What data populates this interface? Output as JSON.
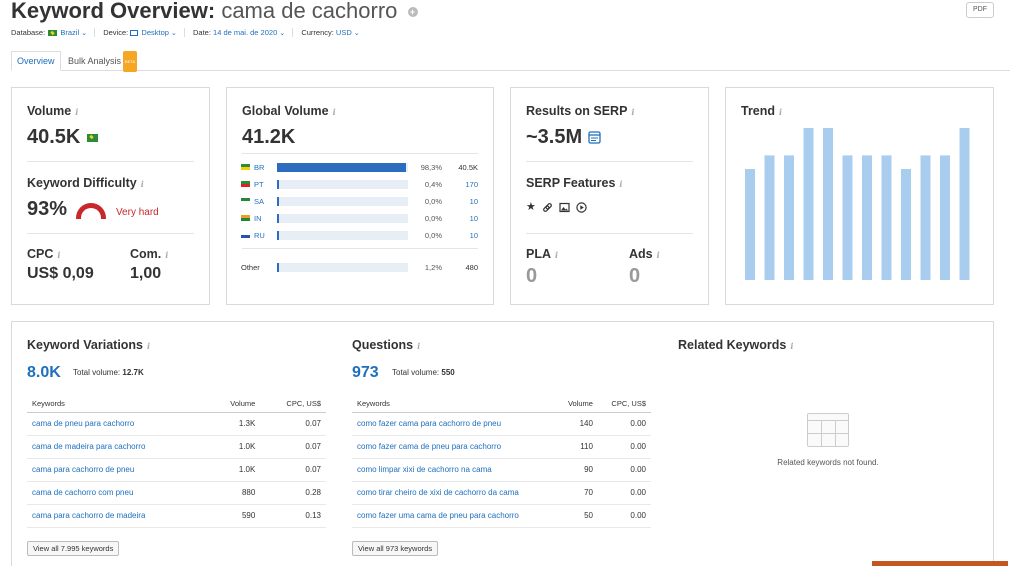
{
  "header": {
    "title_prefix": "Keyword Overview:",
    "keyword": "cama de cachorro",
    "pdf_label": "PDF"
  },
  "filters": {
    "database_label": "Database:",
    "database_value": "Brazil",
    "device_label": "Device:",
    "device_value": "Desktop",
    "date_label": "Date:",
    "date_value": "14 de mai. de 2020",
    "currency_label": "Currency:",
    "currency_value": "USD"
  },
  "tabs": {
    "overview": "Overview",
    "bulk": "Bulk Analysis",
    "beta": "BETA"
  },
  "volume": {
    "label": "Volume",
    "value": "40.5K"
  },
  "difficulty": {
    "label": "Keyword Difficulty",
    "value": "93%",
    "rating": "Very hard"
  },
  "cpc": {
    "label": "CPC",
    "value": "US$ 0,09"
  },
  "com": {
    "label": "Com.",
    "value": "1,00"
  },
  "global_volume": {
    "label": "Global Volume",
    "value": "41.2K",
    "rows": [
      {
        "code": "BR",
        "pct": "98,3%",
        "abs": "40.5K",
        "share": 0.983
      },
      {
        "code": "PT",
        "pct": "0,4%",
        "abs": "170",
        "share": 0.004
      },
      {
        "code": "SA",
        "pct": "0,0%",
        "abs": "10",
        "share": 0.0
      },
      {
        "code": "IN",
        "pct": "0,0%",
        "abs": "10",
        "share": 0.0
      },
      {
        "code": "RU",
        "pct": "0,0%",
        "abs": "10",
        "share": 0.0
      }
    ],
    "other": {
      "code": "Other",
      "pct": "1,2%",
      "abs": "480",
      "share": 0.012
    }
  },
  "serp": {
    "results_label": "Results on SERP",
    "results_value": "~3.5M",
    "features_label": "SERP Features",
    "pla_label": "PLA",
    "pla_value": "0",
    "ads_label": "Ads",
    "ads_value": "0"
  },
  "trend": {
    "label": "Trend"
  },
  "chart_data": {
    "type": "bar",
    "title": "Trend",
    "values": [
      0.73,
      0.82,
      0.82,
      1.0,
      1.0,
      0.82,
      0.82,
      0.82,
      0.73,
      0.82,
      0.82,
      1.0
    ],
    "ylim": [
      0,
      1
    ]
  },
  "variations": {
    "title": "Keyword Variations",
    "count": "8.0K",
    "total_label": "Total volume:",
    "total_value": "12.7K",
    "headers": [
      "Keywords",
      "Volume",
      "CPC, US$"
    ],
    "rows": [
      [
        "cama de pneu para cachorro",
        "1.3K",
        "0.07"
      ],
      [
        "cama de madeira para cachorro",
        "1.0K",
        "0.07"
      ],
      [
        "cama para cachorro de pneu",
        "1.0K",
        "0.07"
      ],
      [
        "cama de cachorro com pneu",
        "880",
        "0.28"
      ],
      [
        "cama para cachorro de madeira",
        "590",
        "0.13"
      ]
    ],
    "view_all": "View all 7.995 keywords"
  },
  "questions": {
    "title": "Questions",
    "count": "973",
    "total_label": "Total volume:",
    "total_value": "550",
    "headers": [
      "Keywords",
      "Volume",
      "CPC, US$"
    ],
    "rows": [
      [
        "como fazer cama para cachorro de pneu",
        "140",
        "0.00"
      ],
      [
        "como fazer cama de pneu para cachorro",
        "110",
        "0.00"
      ],
      [
        "como limpar xixi de cachorro na cama",
        "90",
        "0.00"
      ],
      [
        "como tirar cheiro de xixi de cachorro da cama",
        "70",
        "0.00"
      ],
      [
        "como fazer uma cama de pneu para cachorro",
        "50",
        "0.00"
      ]
    ],
    "view_all": "View all 973 keywords"
  },
  "related": {
    "title": "Related Keywords",
    "empty": "Related keywords not found."
  },
  "colors": {
    "accent": "#1f6fbd",
    "bar": "#2b6cbf",
    "trend_bar": "#a9cdef",
    "danger": "#c8282a"
  }
}
